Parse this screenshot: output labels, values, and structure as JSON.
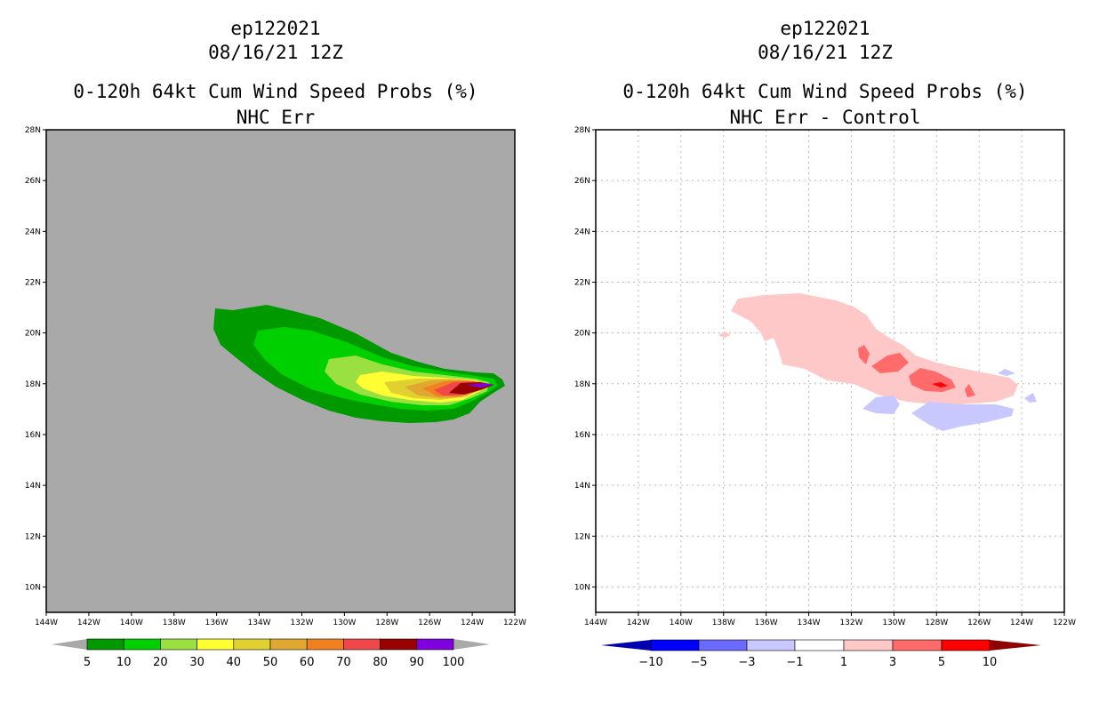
{
  "chart_data": [
    {
      "type": "contour-map",
      "storm_id": "ep122021",
      "datetime": "08/16/21 12Z",
      "title": "0-120h 64kt Cum Wind Speed Probs (%)",
      "subtitle": "NHC Err",
      "background_color": "#a9a9a9",
      "x_ticks": [
        "144W",
        "142W",
        "140W",
        "138W",
        "136W",
        "134W",
        "132W",
        "130W",
        "128W",
        "126W",
        "124W",
        "122W"
      ],
      "y_ticks": [
        "28N",
        "26N",
        "24N",
        "22N",
        "20N",
        "18N",
        "16N",
        "14N",
        "12N",
        "10N"
      ],
      "xlim": [
        -144,
        -122
      ],
      "ylim": [
        9,
        28
      ],
      "grid": false,
      "colorbar": {
        "labels": [
          "5",
          "10",
          "20",
          "30",
          "40",
          "50",
          "60",
          "70",
          "80",
          "90",
          "100"
        ],
        "colors": [
          "#009900",
          "#00d000",
          "#99e040",
          "#ffff33",
          "#e0d030",
          "#e0a830",
          "#f08020",
          "#f04848",
          "#990000",
          "#8000e0"
        ],
        "end_color": "#a9a9a9"
      }
    },
    {
      "type": "contour-map",
      "storm_id": "ep122021",
      "datetime": "08/16/21 12Z",
      "title": "0-120h 64kt Cum Wind Speed Probs (%)",
      "subtitle": "NHC Err - Control",
      "background_color": "#ffffff",
      "x_ticks": [
        "144W",
        "142W",
        "140W",
        "138W",
        "136W",
        "134W",
        "132W",
        "130W",
        "128W",
        "126W",
        "124W",
        "122W"
      ],
      "y_ticks": [
        "28N",
        "26N",
        "24N",
        "22N",
        "20N",
        "18N",
        "16N",
        "14N",
        "12N",
        "10N"
      ],
      "xlim": [
        -144,
        -122
      ],
      "ylim": [
        9,
        28
      ],
      "grid": true,
      "colorbar": {
        "labels": [
          "-10",
          "-5",
          "-3",
          "-1",
          "1",
          "3",
          "5",
          "10"
        ],
        "colors": [
          "#0000b0",
          "#0000ff",
          "#6a6aff",
          "#c8c8ff",
          "#ffffff",
          "#ffc8c8",
          "#ff6a6a",
          "#ff0000",
          "#900000"
        ]
      }
    }
  ]
}
